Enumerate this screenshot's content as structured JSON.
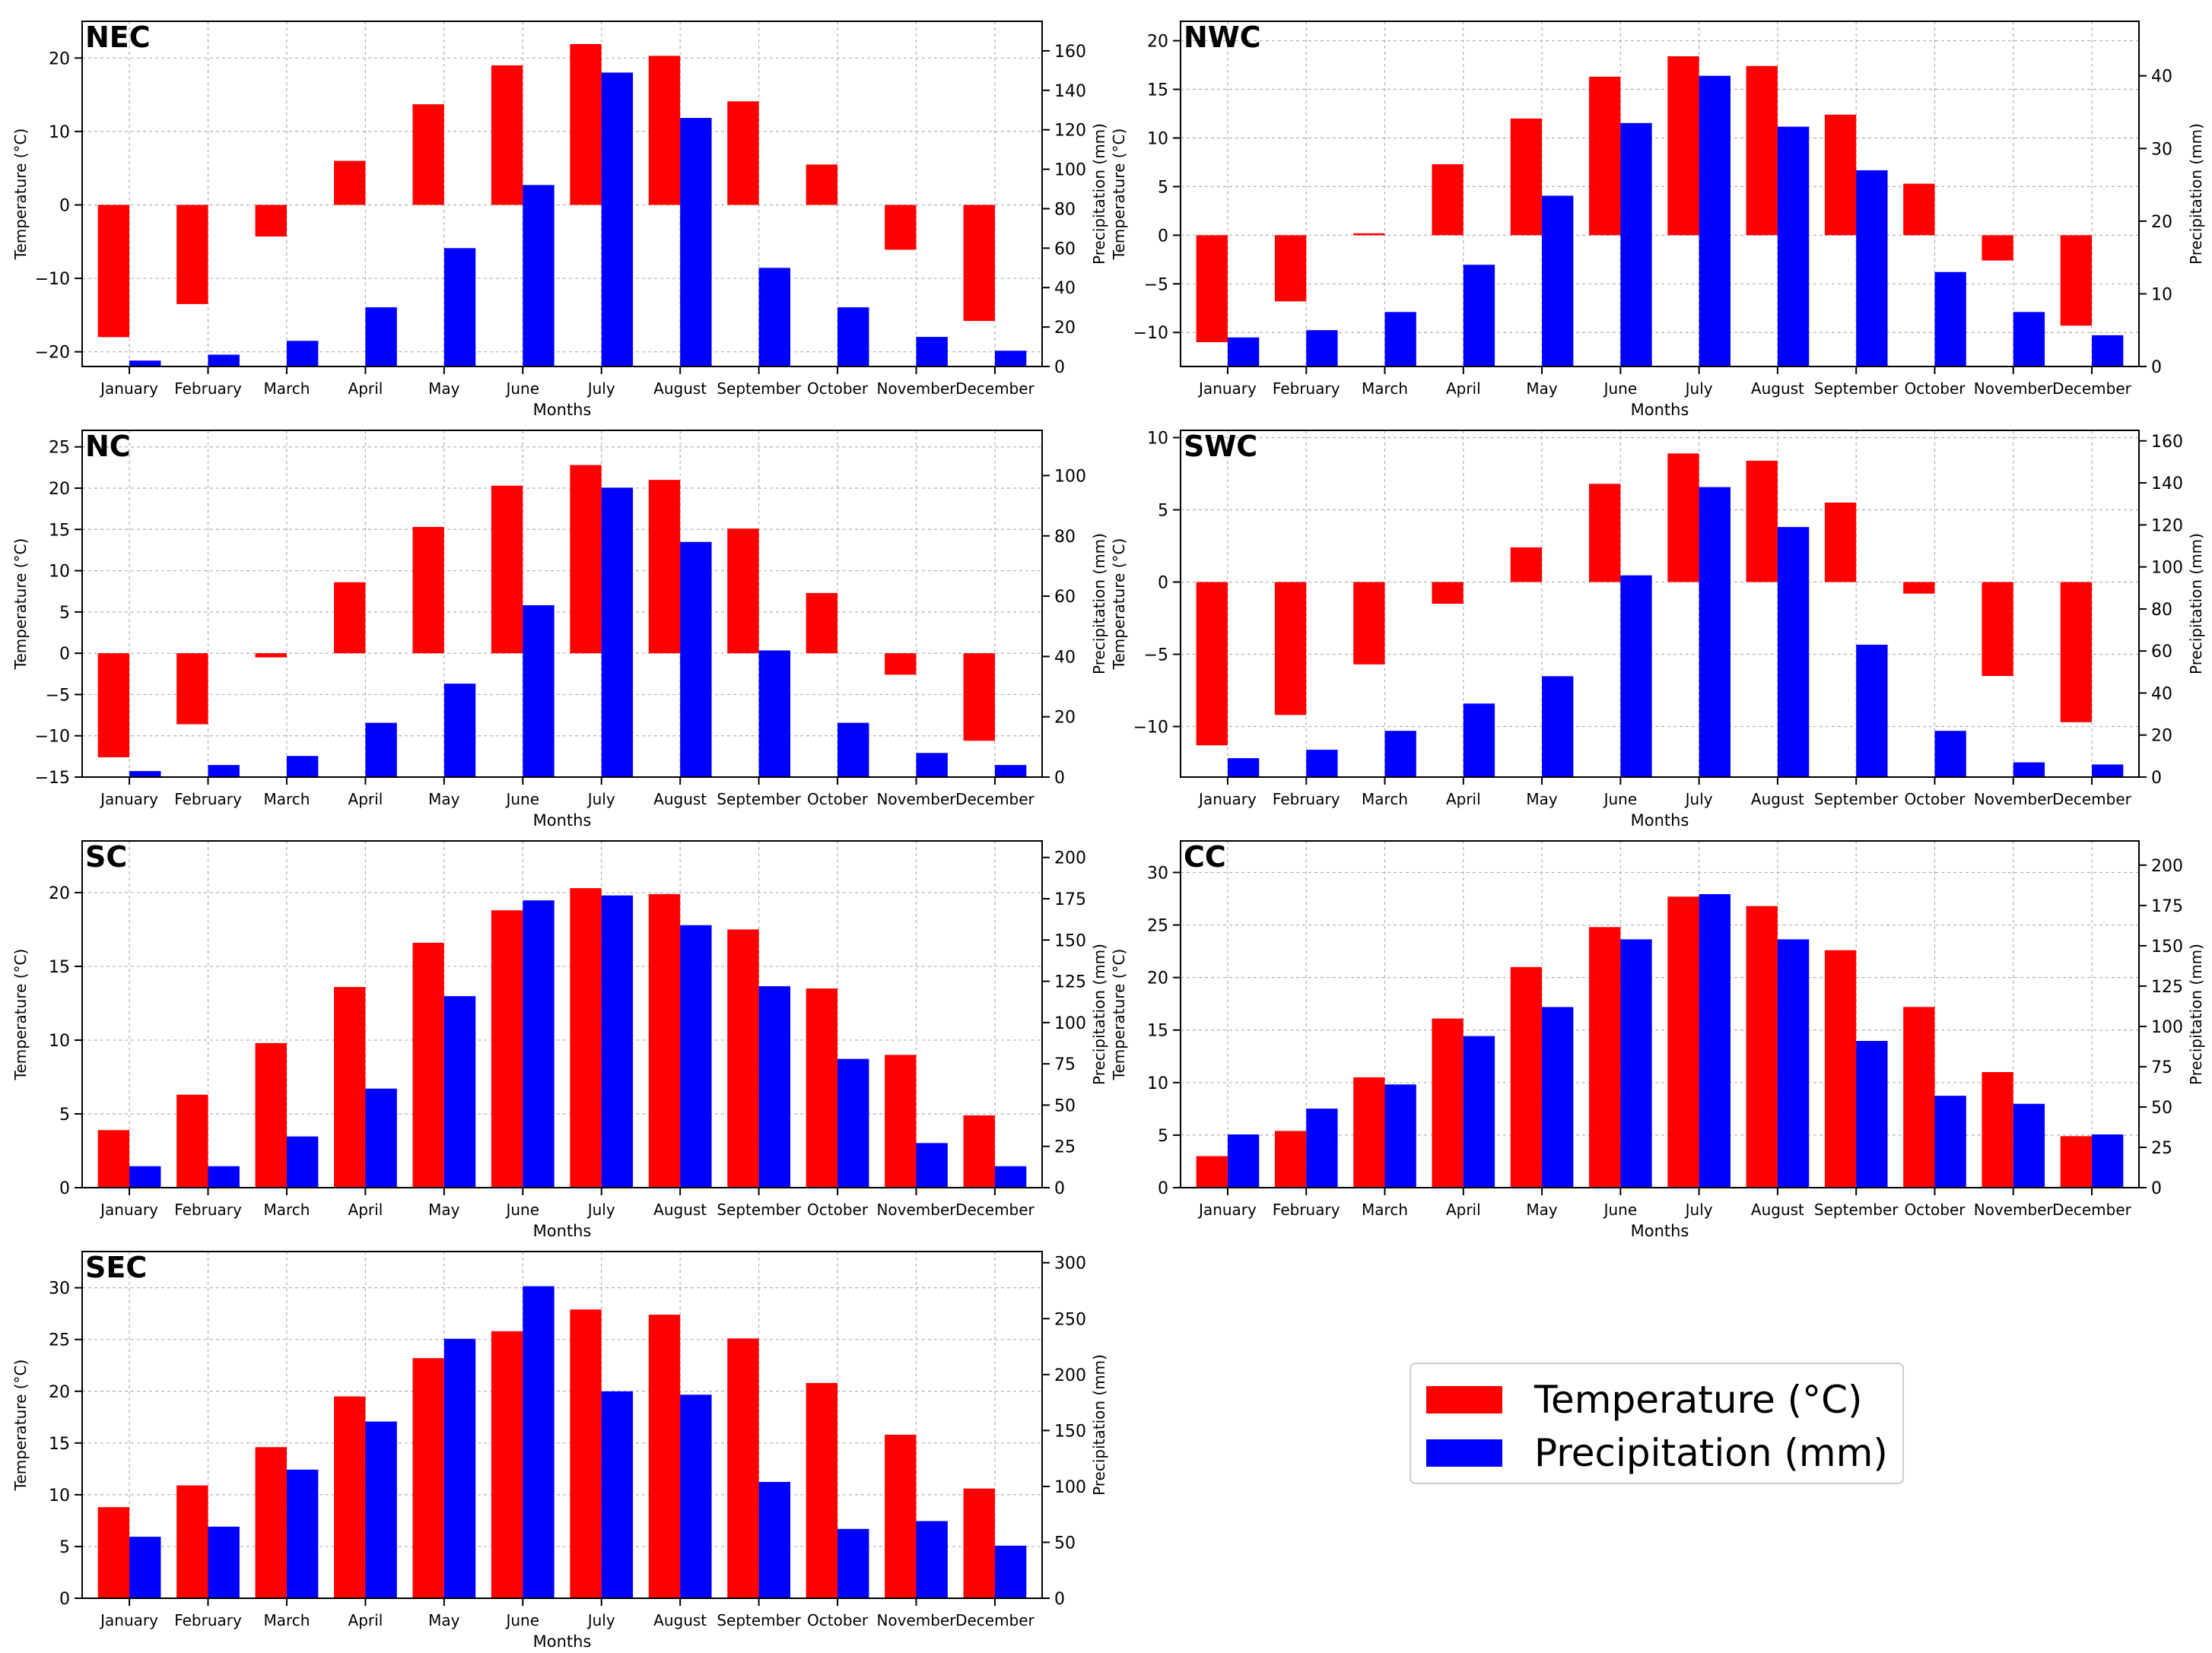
{
  "figure": {
    "x_axis_label": "Months",
    "y_left_label": "Temperature (°C)",
    "y_right_label": "Precipitation (mm)",
    "months": [
      "January",
      "February",
      "March",
      "April",
      "May",
      "June",
      "July",
      "August",
      "September",
      "October",
      "November",
      "December"
    ]
  },
  "legend": {
    "temperature_label": "Temperature (°C)",
    "precipitation_label": "Precipitation (mm)",
    "temperature_color": "#ff0000",
    "precipitation_color": "#0000ff"
  },
  "chart_data": [
    {
      "type": "bar",
      "title": "NEC",
      "categories": [
        "January",
        "February",
        "March",
        "April",
        "May",
        "June",
        "July",
        "August",
        "September",
        "October",
        "November",
        "December"
      ],
      "series": [
        {
          "name": "Temperature (°C)",
          "axis": "left",
          "values": [
            -18,
            -13.5,
            -4.3,
            6,
            13.7,
            19,
            21.9,
            20.3,
            14.1,
            5.5,
            -6.1,
            -15.8
          ]
        },
        {
          "name": "Precipitation (mm)",
          "axis": "right",
          "values": [
            3,
            6,
            13,
            30,
            60,
            92,
            149,
            126,
            50,
            30,
            15,
            8
          ]
        }
      ],
      "ylim_left": [
        -22,
        25
      ],
      "yticks_left": [
        -20,
        -10,
        0,
        10,
        20
      ],
      "ylim_right": [
        0,
        175
      ],
      "yticks_right": [
        0,
        20,
        40,
        60,
        80,
        100,
        120,
        140,
        160
      ]
    },
    {
      "type": "bar",
      "title": "NWC",
      "categories": [
        "January",
        "February",
        "March",
        "April",
        "May",
        "June",
        "July",
        "August",
        "September",
        "October",
        "November",
        "December"
      ],
      "series": [
        {
          "name": "Temperature (°C)",
          "axis": "left",
          "values": [
            -11,
            -6.8,
            0.2,
            7.3,
            12,
            16.3,
            18.4,
            17.4,
            12.4,
            5.3,
            -2.6,
            -9.3
          ]
        },
        {
          "name": "Precipitation (mm)",
          "axis": "right",
          "values": [
            4,
            5,
            7.5,
            14,
            23.5,
            33.5,
            40,
            33,
            27,
            13,
            7.5,
            4.3
          ]
        }
      ],
      "ylim_left": [
        -13.5,
        22
      ],
      "yticks_left": [
        -10,
        -5,
        0,
        5,
        10,
        15,
        20
      ],
      "ylim_right": [
        0,
        47.5
      ],
      "yticks_right": [
        0,
        10,
        20,
        30,
        40
      ]
    },
    {
      "type": "bar",
      "title": "NC",
      "categories": [
        "January",
        "February",
        "March",
        "April",
        "May",
        "June",
        "July",
        "August",
        "September",
        "October",
        "November",
        "December"
      ],
      "series": [
        {
          "name": "Temperature (°C)",
          "axis": "left",
          "values": [
            -12.6,
            -8.6,
            -0.5,
            8.6,
            15.3,
            20.3,
            22.8,
            21,
            15.1,
            7.3,
            -2.6,
            -10.6
          ]
        },
        {
          "name": "Precipitation (mm)",
          "axis": "right",
          "values": [
            2,
            4,
            7,
            18,
            31,
            57,
            96,
            78,
            42,
            18,
            8,
            4
          ]
        }
      ],
      "ylim_left": [
        -15,
        27
      ],
      "yticks_left": [
        -15,
        -10,
        -5,
        0,
        5,
        10,
        15,
        20,
        25
      ],
      "ylim_right": [
        0,
        115
      ],
      "yticks_right": [
        0,
        20,
        40,
        60,
        80,
        100
      ]
    },
    {
      "type": "bar",
      "title": "SWC",
      "categories": [
        "January",
        "February",
        "March",
        "April",
        "May",
        "June",
        "July",
        "August",
        "September",
        "October",
        "November",
        "December"
      ],
      "series": [
        {
          "name": "Temperature (°C)",
          "axis": "left",
          "values": [
            -11.3,
            -9.2,
            -5.7,
            -1.5,
            2.4,
            6.8,
            8.9,
            8.4,
            5.5,
            -0.8,
            -6.5,
            -9.7
          ]
        },
        {
          "name": "Precipitation (mm)",
          "axis": "right",
          "values": [
            9,
            13,
            22,
            35,
            48,
            96,
            138,
            119,
            63,
            22,
            7,
            6
          ]
        }
      ],
      "ylim_left": [
        -13.5,
        10.5
      ],
      "yticks_left": [
        -10,
        -5,
        0,
        5,
        10
      ],
      "ylim_right": [
        0,
        165
      ],
      "yticks_right": [
        0,
        20,
        40,
        60,
        80,
        100,
        120,
        140,
        160
      ]
    },
    {
      "type": "bar",
      "title": "SC",
      "categories": [
        "January",
        "February",
        "March",
        "April",
        "May",
        "June",
        "July",
        "August",
        "September",
        "October",
        "November",
        "December"
      ],
      "series": [
        {
          "name": "Temperature (°C)",
          "axis": "left",
          "values": [
            3.9,
            6.3,
            9.8,
            13.6,
            16.6,
            18.8,
            20.3,
            19.9,
            17.5,
            13.5,
            9,
            4.9
          ]
        },
        {
          "name": "Precipitation (mm)",
          "axis": "right",
          "values": [
            13,
            13,
            31,
            60,
            116,
            174,
            177,
            159,
            122,
            78,
            27,
            13
          ]
        }
      ],
      "ylim_left": [
        0,
        23.5
      ],
      "yticks_left": [
        0,
        5,
        10,
        15,
        20
      ],
      "ylim_right": [
        0,
        210
      ],
      "yticks_right": [
        0,
        25,
        50,
        75,
        100,
        125,
        150,
        175,
        200
      ]
    },
    {
      "type": "bar",
      "title": "CC",
      "categories": [
        "January",
        "February",
        "March",
        "April",
        "May",
        "June",
        "July",
        "August",
        "September",
        "October",
        "November",
        "December"
      ],
      "series": [
        {
          "name": "Temperature (°C)",
          "axis": "left",
          "values": [
            3,
            5.4,
            10.5,
            16.1,
            21,
            24.8,
            27.7,
            26.8,
            22.6,
            17.2,
            11,
            4.9
          ]
        },
        {
          "name": "Precipitation (mm)",
          "axis": "right",
          "values": [
            33,
            49,
            64,
            94,
            112,
            154,
            182,
            154,
            91,
            57,
            52,
            33
          ]
        }
      ],
      "ylim_left": [
        0,
        33
      ],
      "yticks_left": [
        0,
        5,
        10,
        15,
        20,
        25,
        30
      ],
      "ylim_right": [
        0,
        215
      ],
      "yticks_right": [
        0,
        25,
        50,
        75,
        100,
        125,
        150,
        175,
        200
      ]
    },
    {
      "type": "bar",
      "title": "SEC",
      "categories": [
        "January",
        "February",
        "March",
        "April",
        "May",
        "June",
        "July",
        "August",
        "September",
        "October",
        "November",
        "December"
      ],
      "series": [
        {
          "name": "Temperature (°C)",
          "axis": "left",
          "values": [
            8.8,
            10.9,
            14.6,
            19.5,
            23.2,
            25.8,
            27.9,
            27.4,
            25.1,
            20.8,
            15.8,
            10.6
          ]
        },
        {
          "name": "Precipitation (mm)",
          "axis": "right",
          "values": [
            55,
            64,
            115,
            158,
            232,
            279,
            185,
            182,
            104,
            62,
            69,
            47
          ]
        }
      ],
      "ylim_left": [
        0,
        33.5
      ],
      "yticks_left": [
        0,
        5,
        10,
        15,
        20,
        25,
        30
      ],
      "ylim_right": [
        0,
        310
      ],
      "yticks_right": [
        0,
        50,
        100,
        150,
        200,
        250,
        300
      ]
    }
  ]
}
